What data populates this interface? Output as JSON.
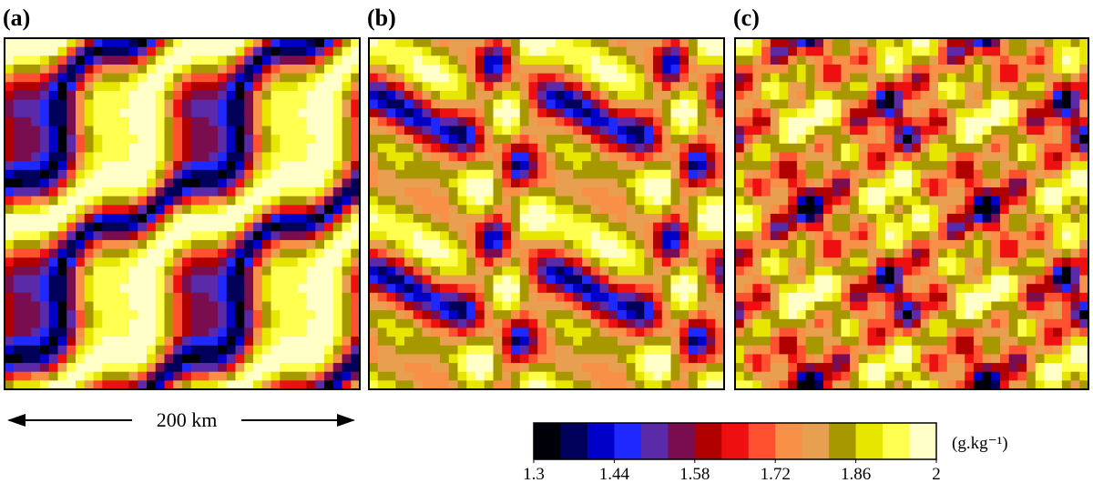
{
  "panels": [
    {
      "label": "(a)"
    },
    {
      "label": "(b)"
    },
    {
      "label": "(c)"
    }
  ],
  "scale_label": "200 km",
  "colorbar": {
    "lim": [
      1.3,
      2
    ],
    "ticks": [
      1.3,
      1.44,
      1.58,
      1.72,
      1.86,
      2
    ],
    "unit": "(g.kg⁻¹)",
    "colors": [
      "#000008",
      "#00005a",
      "#0000c8",
      "#1e28ff",
      "#5a2aa8",
      "#7a0c50",
      "#b00000",
      "#ee1010",
      "#ff5030",
      "#f89048",
      "#e8a050",
      "#a89800",
      "#e6e600",
      "#ffff50",
      "#ffffc8"
    ]
  }
}
